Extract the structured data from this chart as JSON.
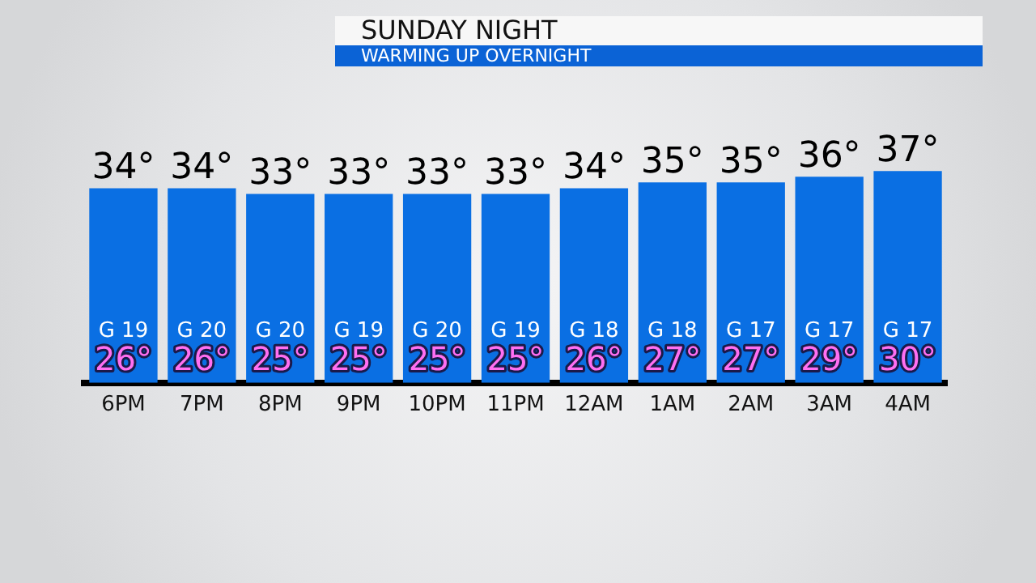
{
  "chart_data": {
    "type": "bar",
    "title": "SUNDAY NIGHT",
    "subtitle": "WARMING UP OVERNIGHT",
    "categories": [
      "6PM",
      "7PM",
      "8PM",
      "9PM",
      "10PM",
      "11PM",
      "12AM",
      "1AM",
      "2AM",
      "3AM",
      "4AM"
    ],
    "series": [
      {
        "color": "#0a6fe3",
        "values": [
          34,
          34,
          33,
          33,
          33,
          33,
          34,
          35,
          35,
          36,
          37
        ],
        "value_labels": [
          "34°",
          "34°",
          "33°",
          "33°",
          "33°",
          "33°",
          "34°",
          "35°",
          "35°",
          "36°",
          "37°"
        ]
      }
    ],
    "tick_labels": "x",
    "legend": false,
    "annotations": [
      "G 19",
      "G 20",
      "G 20",
      "G 19",
      "G 20",
      "G 19",
      "G 18",
      "G 18",
      "G 17",
      "G 17",
      "G 17",
      "26°",
      "26°",
      "25°",
      "25°",
      "25°",
      "25°",
      "26°",
      "27°",
      "27°",
      "29°",
      "30°"
    ]
  }
}
